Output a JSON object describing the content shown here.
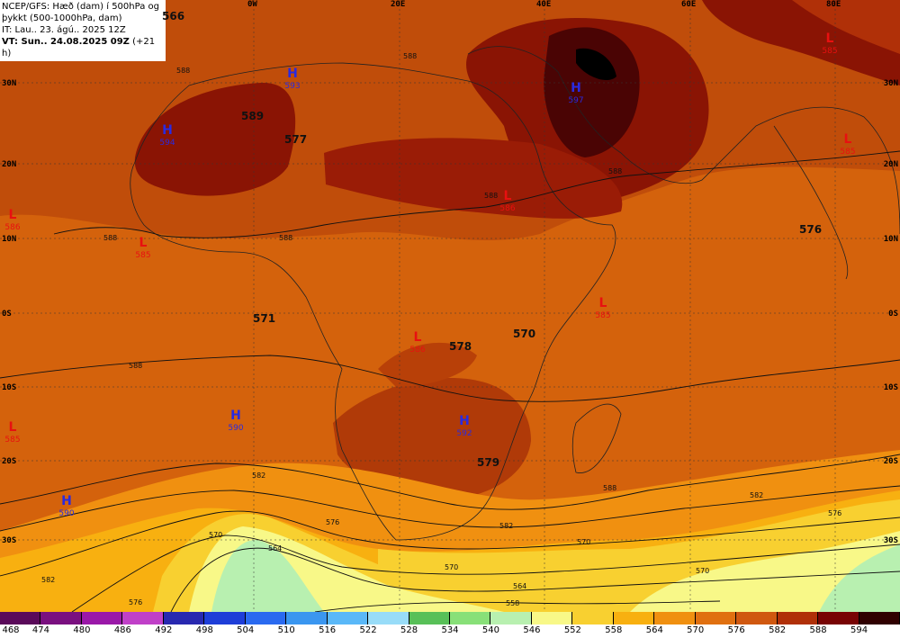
{
  "title": {
    "line1": "NCEP/GFS: Hæð (dam) í 500hPa og",
    "line2": "þykkt (500-1000hPa, dam)",
    "line3": "IT: Lau.. 23. ágú.. 2025 12Z",
    "line4_bold": "VT: Sun.. 24.08.2025 09Z",
    "line4_rest": " (+21 h)"
  },
  "lon_labels": [
    "0W",
    "20E",
    "40E",
    "60E",
    "80E"
  ],
  "lat_labels": [
    "30N",
    "20N",
    "10N",
    "0S",
    "10S",
    "20S",
    "30S"
  ],
  "centers": [
    {
      "type": "H",
      "value": "593"
    },
    {
      "type": "H",
      "value": "594"
    },
    {
      "type": "H",
      "value": "597"
    },
    {
      "type": "H",
      "value": "590"
    },
    {
      "type": "H",
      "value": "592"
    },
    {
      "type": "H",
      "value": "590"
    },
    {
      "type": "L",
      "value": "586"
    },
    {
      "type": "L",
      "value": "585"
    },
    {
      "type": "L",
      "value": "586"
    },
    {
      "type": "L",
      "value": "585"
    },
    {
      "type": "L",
      "value": "586"
    },
    {
      "type": "L",
      "value": "585"
    },
    {
      "type": "L",
      "value": "585"
    },
    {
      "type": "L",
      "value": "585"
    }
  ],
  "thickness_labels": [
    "566",
    "589",
    "577",
    "576",
    "571",
    "578",
    "570",
    "579"
  ],
  "contour_labels": [
    "588",
    "588",
    "588",
    "588",
    "588",
    "588",
    "588",
    "582",
    "582",
    "582",
    "576",
    "570",
    "570",
    "564",
    "576",
    "558",
    "570",
    "582",
    "588",
    "576",
    "570",
    "564"
  ],
  "colorbar": {
    "labels": [
      "468",
      "474",
      "480",
      "486",
      "492",
      "498",
      "504",
      "510",
      "516",
      "522",
      "528",
      "534",
      "540",
      "546",
      "552",
      "558",
      "564",
      "570",
      "576",
      "582",
      "588",
      "594"
    ],
    "colors": [
      "#5a0a5a",
      "#7a1080",
      "#9a18a8",
      "#c040c8",
      "#2828b0",
      "#1e3ed8",
      "#2a6af0",
      "#3a96f0",
      "#5ab8f8",
      "#98dcf8",
      "#58c058",
      "#88e078",
      "#b8f0b0",
      "#f8f888",
      "#f8d030",
      "#f8b010",
      "#f09010",
      "#e07010",
      "#d05810",
      "#b03008",
      "#780404",
      "#300000"
    ]
  }
}
